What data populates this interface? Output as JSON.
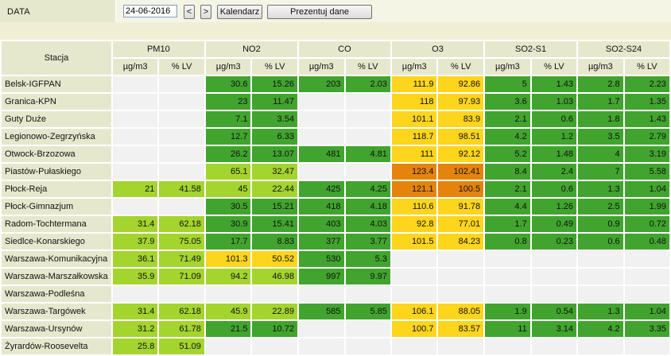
{
  "topbar": {
    "label": "DATA",
    "date_value": "24-06-2016",
    "prev_label": "<",
    "next_label": ">",
    "calendar_label": "Kalendarz",
    "present_label": "Prezentuj dane"
  },
  "table": {
    "station_header": "Stacja",
    "groups": [
      "PM10",
      "NO2",
      "CO",
      "O3",
      "SO2-S1",
      "SO2-S24"
    ],
    "subheaders": [
      "µg/m3",
      "% LV"
    ],
    "colors": {
      "empty": "#f1f1f1",
      "green": "#41a42e",
      "light_green": "#a4d42e",
      "yellow": "#fdd51c",
      "orange": "#e5840b"
    },
    "rows": [
      {
        "station": "Belsk-IGFPAN",
        "cells": [
          [
            "",
            ""
          ],
          [
            "30.6",
            "15.26"
          ],
          [
            "203",
            "2.03"
          ],
          [
            "111.9",
            "92.86"
          ],
          [
            "5",
            "1.43"
          ],
          [
            "2.8",
            "2.23"
          ]
        ],
        "classes": [
          "e",
          "g",
          "g",
          "y",
          "g",
          "g"
        ]
      },
      {
        "station": "Granica-KPN",
        "cells": [
          [
            "",
            ""
          ],
          [
            "23",
            "11.47"
          ],
          [
            "",
            ""
          ],
          [
            "118",
            "97.93"
          ],
          [
            "3.6",
            "1.03"
          ],
          [
            "1.7",
            "1.35"
          ]
        ],
        "classes": [
          "e",
          "g",
          "e",
          "y",
          "g",
          "g"
        ]
      },
      {
        "station": "Guty Duże",
        "cells": [
          [
            "",
            ""
          ],
          [
            "7.1",
            "3.54"
          ],
          [
            "",
            ""
          ],
          [
            "101.1",
            "83.9"
          ],
          [
            "2.1",
            "0.6"
          ],
          [
            "1.8",
            "1.43"
          ]
        ],
        "classes": [
          "e",
          "g",
          "e",
          "y",
          "g",
          "g"
        ]
      },
      {
        "station": "Legionowo-Zegrzyńska",
        "cells": [
          [
            "",
            ""
          ],
          [
            "12.7",
            "6.33"
          ],
          [
            "",
            ""
          ],
          [
            "118.7",
            "98.51"
          ],
          [
            "4.2",
            "1.2"
          ],
          [
            "3.5",
            "2.79"
          ]
        ],
        "classes": [
          "e",
          "g",
          "e",
          "y",
          "g",
          "g"
        ]
      },
      {
        "station": "Otwock-Brzozowa",
        "cells": [
          [
            "",
            ""
          ],
          [
            "26.2",
            "13.07"
          ],
          [
            "481",
            "4.81"
          ],
          [
            "111",
            "92.12"
          ],
          [
            "5.2",
            "1.48"
          ],
          [
            "4",
            "3.19"
          ]
        ],
        "classes": [
          "e",
          "g",
          "g",
          "y",
          "g",
          "g"
        ]
      },
      {
        "station": "Piastów-Pułaskiego",
        "cells": [
          [
            "",
            ""
          ],
          [
            "65.1",
            "32.47"
          ],
          [
            "",
            ""
          ],
          [
            "123.4",
            "102.41"
          ],
          [
            "8.4",
            "2.4"
          ],
          [
            "7",
            "5.58"
          ]
        ],
        "classes": [
          "e",
          "lg",
          "e",
          "o",
          "g",
          "g"
        ]
      },
      {
        "station": "Płock-Reja",
        "cells": [
          [
            "21",
            "41.58"
          ],
          [
            "45",
            "22.44"
          ],
          [
            "425",
            "4.25"
          ],
          [
            "121.1",
            "100.5"
          ],
          [
            "2.1",
            "0.6"
          ],
          [
            "1.3",
            "1.04"
          ]
        ],
        "classes": [
          "lg",
          "lg",
          "g",
          "o",
          "g",
          "g"
        ]
      },
      {
        "station": "Płock-Gimnazjum",
        "cells": [
          [
            "",
            ""
          ],
          [
            "30.5",
            "15.21"
          ],
          [
            "418",
            "4.18"
          ],
          [
            "110.6",
            "91.78"
          ],
          [
            "4.4",
            "1.26"
          ],
          [
            "2.5",
            "1.99"
          ]
        ],
        "classes": [
          "e",
          "g",
          "g",
          "y",
          "g",
          "g"
        ]
      },
      {
        "station": "Radom-Tochtermana",
        "cells": [
          [
            "31.4",
            "62.18"
          ],
          [
            "30.9",
            "15.41"
          ],
          [
            "403",
            "4.03"
          ],
          [
            "92.8",
            "77.01"
          ],
          [
            "1.7",
            "0.49"
          ],
          [
            "0.9",
            "0.72"
          ]
        ],
        "classes": [
          "lg",
          "g",
          "g",
          "y",
          "g",
          "g"
        ]
      },
      {
        "station": "Siedlce-Konarskiego",
        "cells": [
          [
            "37.9",
            "75.05"
          ],
          [
            "17.7",
            "8.83"
          ],
          [
            "377",
            "3.77"
          ],
          [
            "101.5",
            "84.23"
          ],
          [
            "0.8",
            "0.23"
          ],
          [
            "0.6",
            "0.48"
          ]
        ],
        "classes": [
          "lg",
          "g",
          "g",
          "y",
          "g",
          "g"
        ]
      },
      {
        "station": "Warszawa-Komunikacyjna",
        "cells": [
          [
            "36.1",
            "71.49"
          ],
          [
            "101.3",
            "50.52"
          ],
          [
            "530",
            "5.3"
          ],
          [
            "",
            ""
          ],
          [
            "",
            ""
          ],
          [
            "",
            ""
          ]
        ],
        "classes": [
          "lg",
          "y",
          "g",
          "e",
          "e",
          "e"
        ]
      },
      {
        "station": "Warszawa-Marszałkowska",
        "cells": [
          [
            "35.9",
            "71.09"
          ],
          [
            "94.2",
            "46.98"
          ],
          [
            "997",
            "9.97"
          ],
          [
            "",
            ""
          ],
          [
            "",
            ""
          ],
          [
            "",
            ""
          ]
        ],
        "classes": [
          "lg",
          "lg",
          "g",
          "e",
          "e",
          "e"
        ]
      },
      {
        "station": "Warszawa-Podleśna",
        "cells": [
          [
            "",
            ""
          ],
          [
            "",
            ""
          ],
          [
            "",
            ""
          ],
          [
            "",
            ""
          ],
          [
            "",
            ""
          ],
          [
            "",
            ""
          ]
        ],
        "classes": [
          "e",
          "e",
          "e",
          "e",
          "e",
          "e"
        ]
      },
      {
        "station": "Warszawa-Targówek",
        "cells": [
          [
            "31.4",
            "62.18"
          ],
          [
            "45.9",
            "22.89"
          ],
          [
            "585",
            "5.85"
          ],
          [
            "106.1",
            "88.05"
          ],
          [
            "1.9",
            "0.54"
          ],
          [
            "1.3",
            "1.04"
          ]
        ],
        "classes": [
          "lg",
          "lg",
          "g",
          "y",
          "g",
          "g"
        ]
      },
      {
        "station": "Warszawa-Ursynów",
        "cells": [
          [
            "31.2",
            "61.78"
          ],
          [
            "21.5",
            "10.72"
          ],
          [
            "",
            ""
          ],
          [
            "100.7",
            "83.57"
          ],
          [
            "11",
            "3.14"
          ],
          [
            "4.2",
            "3.35"
          ]
        ],
        "classes": [
          "lg",
          "g",
          "e",
          "y",
          "g",
          "g"
        ]
      },
      {
        "station": "Żyrardów-Roosevelta",
        "cells": [
          [
            "25.8",
            "51.09"
          ],
          [
            "",
            ""
          ],
          [
            "",
            ""
          ],
          [
            "",
            ""
          ],
          [
            "",
            ""
          ],
          [
            "",
            ""
          ]
        ],
        "classes": [
          "lg",
          "e",
          "e",
          "e",
          "e",
          "e"
        ]
      }
    ]
  }
}
